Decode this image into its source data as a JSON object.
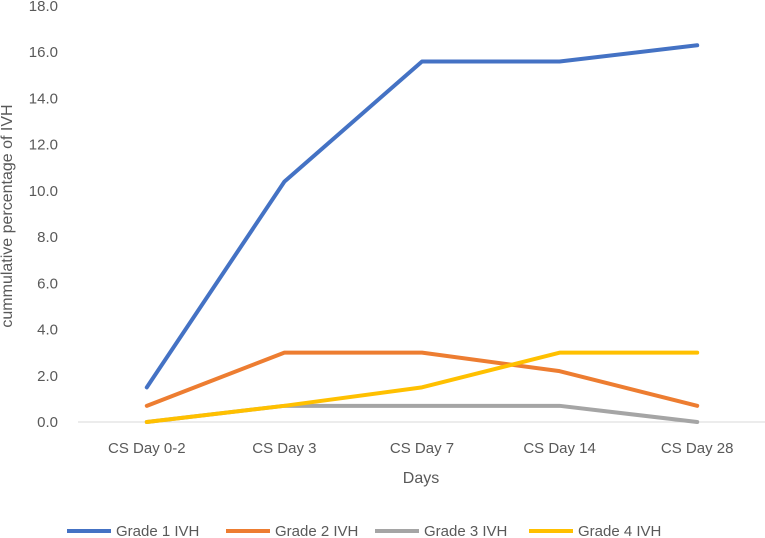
{
  "chart_data": {
    "type": "line",
    "title": "",
    "xlabel": "Days",
    "ylabel": "cummulative percentage of IVH",
    "categories": [
      "CS Day 0-2",
      "CS Day 3",
      "CS Day 7",
      "CS Day 14",
      "CS Day 28"
    ],
    "ylim": [
      0,
      18
    ],
    "yticks": [
      "0.0",
      "2.0",
      "4.0",
      "6.0",
      "8.0",
      "10.0",
      "12.0",
      "14.0",
      "16.0",
      "18.0"
    ],
    "grid": false,
    "legend_position": "bottom",
    "series": [
      {
        "name": "Grade 1 IVH",
        "color": "#4472C4",
        "values": [
          1.5,
          10.4,
          15.6,
          15.6,
          16.3
        ]
      },
      {
        "name": "Grade 2 IVH",
        "color": "#ED7D31",
        "values": [
          0.7,
          3.0,
          3.0,
          2.2,
          0.7
        ]
      },
      {
        "name": "Grade 3 IVH",
        "color": "#A5A5A5",
        "values": [
          0.0,
          0.7,
          0.7,
          0.7,
          0.0
        ]
      },
      {
        "name": "Grade 4 IVH",
        "color": "#FFC000",
        "values": [
          0.0,
          0.7,
          1.5,
          3.0,
          3.0
        ]
      }
    ]
  }
}
